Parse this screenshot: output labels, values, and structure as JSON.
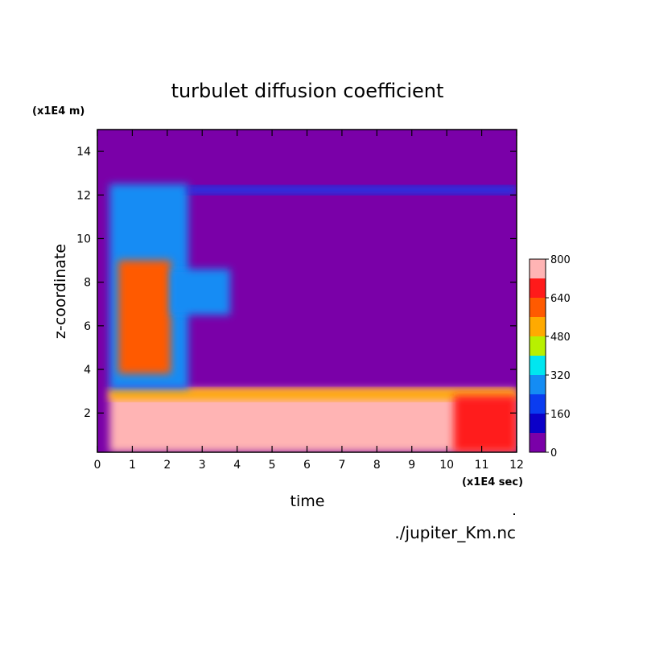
{
  "chart_data": {
    "type": "heatmap",
    "title": "turbulet diffusion coefficient",
    "xlabel": "time",
    "ylabel": "z-coordinate",
    "x_units": "(x1E4 sec)",
    "y_units": "(x1E4 m)",
    "source_label": "./jupiter_Km.nc",
    "xlim": [
      0,
      12
    ],
    "ylim": [
      0.2,
      15
    ],
    "x_ticks": [
      0,
      1,
      2,
      3,
      4,
      5,
      6,
      7,
      8,
      9,
      10,
      11,
      12
    ],
    "y_ticks": [
      2,
      4,
      6,
      8,
      10,
      12,
      14
    ],
    "colorbar": {
      "levels": [
        0,
        80,
        160,
        240,
        320,
        400,
        480,
        560,
        640,
        720,
        800
      ],
      "tick_labels": [
        "0",
        "160",
        "320",
        "480",
        "640",
        "800"
      ],
      "tick_values": [
        0,
        160,
        320,
        480,
        640,
        800
      ],
      "colors": [
        "#7a00a8",
        "#0b00c8",
        "#0a3cf0",
        "#148cf4",
        "#00e6f0",
        "#b8f000",
        "#ffaa00",
        "#ff5a00",
        "#ff1a1a",
        "#ffb4b4"
      ]
    },
    "regions": [
      {
        "x": [
          0,
          12
        ],
        "y": [
          0.2,
          15
        ],
        "value": 40
      },
      {
        "x": [
          0.35,
          12
        ],
        "y": [
          0.2,
          3.1
        ],
        "value": 760
      },
      {
        "x": [
          0.35,
          12
        ],
        "y": [
          2.6,
          3.1
        ],
        "value": 500
      },
      {
        "x": [
          0.35,
          2.6
        ],
        "y": [
          3.1,
          12.5
        ],
        "value": 280
      },
      {
        "x": [
          0.6,
          2.1
        ],
        "y": [
          3.8,
          9.0
        ],
        "value": 600
      },
      {
        "x": [
          2.1,
          3.8
        ],
        "y": [
          6.5,
          8.6
        ],
        "value": 260
      },
      {
        "x": [
          2.6,
          12
        ],
        "y": [
          12.05,
          12.4
        ],
        "value": 180
      },
      {
        "x": [
          10.2,
          12
        ],
        "y": [
          0.2,
          2.8
        ],
        "value": 660
      }
    ]
  }
}
